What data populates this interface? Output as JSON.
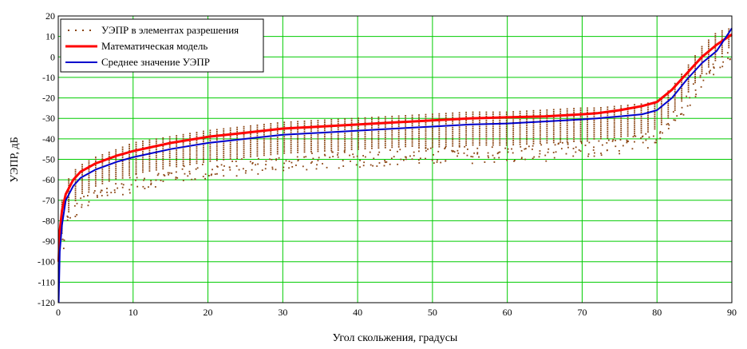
{
  "chart_data": {
    "type": "scatter",
    "xlabel": "Угол скольжения, градусы",
    "ylabel": "УЭПР, дБ",
    "xlim": [
      0,
      90
    ],
    "ylim": [
      -120,
      20
    ],
    "xticks": [
      0,
      10,
      20,
      30,
      40,
      50,
      60,
      70,
      80,
      90
    ],
    "yticks": [
      20,
      10,
      0,
      -10,
      -20,
      -30,
      -40,
      -50,
      -60,
      -70,
      -80,
      -90,
      -100,
      -110,
      -120
    ],
    "grid": true,
    "legend_position": "top-left",
    "series": [
      {
        "name": "УЭПР в элементах разрешения",
        "kind": "scatter",
        "color": "#8B4513",
        "band_x": [
          0.5,
          1,
          2,
          3,
          5,
          8,
          10,
          15,
          20,
          25,
          30,
          35,
          40,
          45,
          50,
          55,
          60,
          65,
          70,
          72,
          75,
          78,
          80,
          82,
          84,
          86,
          88,
          90
        ],
        "band_top": [
          -70,
          -62,
          -56,
          -53,
          -49,
          -45,
          -42,
          -39,
          -36,
          -34,
          -32,
          -31,
          -30,
          -29,
          -28,
          -27,
          -27,
          -26,
          -25,
          -25,
          -24,
          -23,
          -22,
          -15,
          -5,
          5,
          12,
          14
        ],
        "band_bottom": [
          -95,
          -88,
          -80,
          -76,
          -72,
          -68,
          -66,
          -62,
          -60,
          -58,
          -56,
          -55,
          -54,
          -53,
          -53,
          -52,
          -52,
          -51,
          -50,
          -49,
          -48,
          -46,
          -42,
          -35,
          -25,
          -15,
          -8,
          0
        ]
      },
      {
        "name": "Математическая модель",
        "kind": "line",
        "color": "#ff0000",
        "x": [
          0.05,
          0.2,
          0.5,
          1,
          2,
          3,
          5,
          8,
          10,
          15,
          20,
          25,
          30,
          35,
          40,
          45,
          50,
          55,
          60,
          65,
          70,
          72,
          75,
          78,
          80,
          82,
          84,
          86,
          88,
          90
        ],
        "y": [
          -100,
          -85,
          -75,
          -67,
          -60,
          -56,
          -52,
          -48,
          -46,
          -42,
          -39,
          -37,
          -35,
          -34,
          -33,
          -32,
          -31,
          -30,
          -29.5,
          -29,
          -28,
          -27.5,
          -26,
          -24,
          -22,
          -16,
          -8,
          0,
          6,
          11
        ]
      },
      {
        "name": "Среднее значение УЭПР",
        "kind": "line",
        "color": "#0000cc",
        "x": [
          0.05,
          0.2,
          0.5,
          1,
          2,
          3,
          5,
          8,
          10,
          15,
          20,
          25,
          30,
          35,
          40,
          45,
          50,
          55,
          60,
          65,
          70,
          72,
          75,
          78,
          80,
          82,
          84,
          86,
          88,
          90
        ],
        "y": [
          -120,
          -95,
          -82,
          -70,
          -63,
          -59,
          -55,
          -51,
          -49,
          -45,
          -42,
          -40,
          -38,
          -37,
          -36,
          -35,
          -34,
          -33,
          -32.5,
          -31.5,
          -30.5,
          -30,
          -29,
          -28,
          -26,
          -20,
          -11,
          -3,
          3,
          14
        ]
      }
    ]
  }
}
